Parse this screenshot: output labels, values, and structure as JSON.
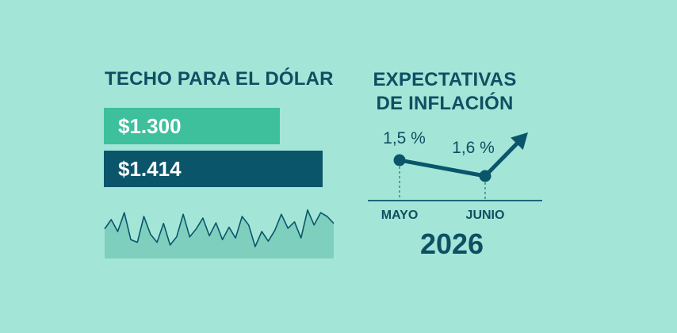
{
  "colors": {
    "background": "#a3e6d7",
    "dark_teal": "#0b556b",
    "light_green": "#3ec09c",
    "title_text": "#0e4f63",
    "sparkline_fill": "#7fcfbe"
  },
  "chart_data": [
    {
      "type": "bar",
      "orientation": "horizontal",
      "title": "TECHO PARA EL DÓLAR",
      "bars": [
        {
          "label": "$1.300",
          "value": 1300,
          "color": "#3ec09c"
        },
        {
          "label": "$1.414",
          "value": 1414,
          "color": "#0b556b"
        }
      ],
      "sparkline": {
        "type": "area",
        "values": [
          0.55,
          0.72,
          0.5,
          0.85,
          0.35,
          0.3,
          0.78,
          0.45,
          0.3,
          0.65,
          0.25,
          0.4,
          0.82,
          0.4,
          0.55,
          0.75,
          0.42,
          0.66,
          0.35,
          0.58,
          0.38,
          0.78,
          0.62,
          0.22,
          0.5,
          0.32,
          0.52,
          0.82,
          0.56,
          0.68,
          0.38,
          0.9,
          0.62,
          0.85,
          0.78,
          0.65
        ]
      }
    },
    {
      "type": "line",
      "title_line1": "EXPECTATIVAS",
      "title_line2": "DE INFLACIÓN",
      "x_labels": [
        "MAYO",
        "JUNIO"
      ],
      "values": [
        1.5,
        1.6
      ],
      "value_labels": [
        "1,5 %",
        "1,6 %"
      ],
      "trend": "up",
      "year": "2026"
    }
  ]
}
